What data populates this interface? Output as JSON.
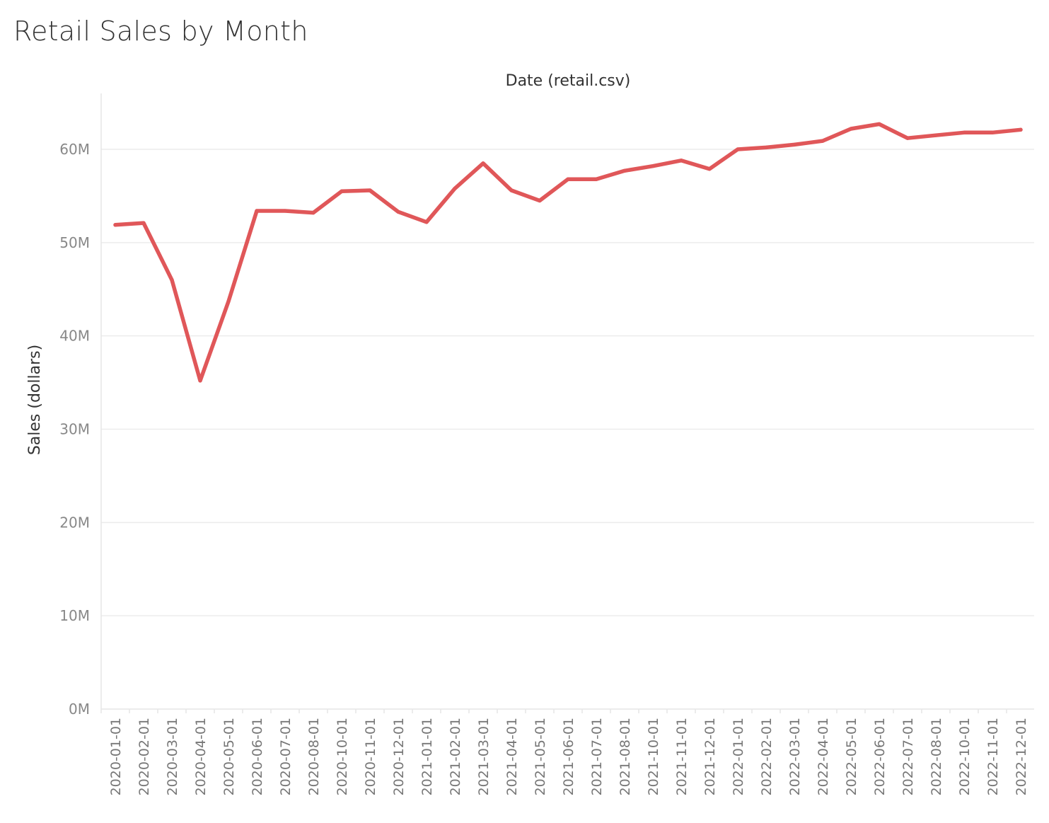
{
  "chart_data": {
    "type": "line",
    "title": "Retail Sales by Month",
    "xlabel": "Date (retail.csv)",
    "ylabel": "Sales (dollars)",
    "ylim": [
      0,
      66000000
    ],
    "y_ticks": [
      0,
      10000000,
      20000000,
      30000000,
      40000000,
      50000000,
      60000000
    ],
    "y_tick_labels": [
      "0M",
      "10M",
      "20M",
      "30M",
      "40M",
      "50M",
      "60M"
    ],
    "grid": "horizontal",
    "categories": [
      "2020-01-01",
      "2020-02-01",
      "2020-03-01",
      "2020-04-01",
      "2020-05-01",
      "2020-06-01",
      "2020-07-01",
      "2020-08-01",
      "2020-10-01",
      "2020-11-01",
      "2020-12-01",
      "2021-01-01",
      "2021-02-01",
      "2021-03-01",
      "2021-04-01",
      "2021-05-01",
      "2021-06-01",
      "2021-07-01",
      "2021-08-01",
      "2021-10-01",
      "2021-11-01",
      "2021-12-01",
      "2022-01-01",
      "2022-02-01",
      "2022-03-01",
      "2022-04-01",
      "2022-05-01",
      "2022-06-01",
      "2022-07-01",
      "2022-08-01",
      "2022-10-01",
      "2022-11-01",
      "2022-12-01"
    ],
    "series": [
      {
        "color": "#e05759",
        "values": [
          51900000,
          52100000,
          46000000,
          35200000,
          43700000,
          53400000,
          53400000,
          53200000,
          55500000,
          55600000,
          53300000,
          52200000,
          55800000,
          58500000,
          55600000,
          54500000,
          56800000,
          56800000,
          57700000,
          58200000,
          58800000,
          57900000,
          60000000,
          60200000,
          60500000,
          60900000,
          62200000,
          62700000,
          61200000,
          61500000,
          61800000,
          61800000,
          62100000
        ]
      }
    ]
  }
}
